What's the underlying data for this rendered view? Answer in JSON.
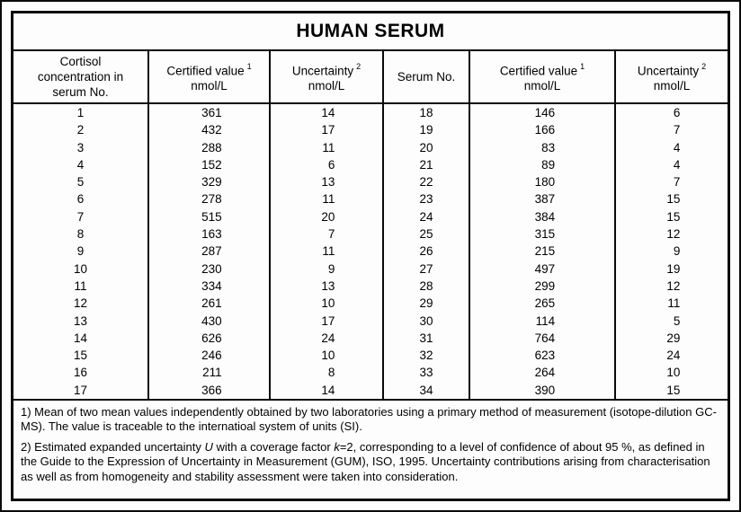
{
  "title": "HUMAN SERUM",
  "headers": {
    "col1": "Cortisol concentration in serum No.",
    "certified": {
      "label": "Certified value",
      "sup": "1",
      "unit": "nmol/L"
    },
    "uncertainty": {
      "label": "Uncertainty",
      "sup": "2",
      "unit": "nmol/L"
    },
    "serum_no": "Serum No."
  },
  "table": {
    "rows": [
      [
        "1",
        "361",
        "14",
        "18",
        "146",
        "6"
      ],
      [
        "2",
        "432",
        "17",
        "19",
        "166",
        "7"
      ],
      [
        "3",
        "288",
        "11",
        "20",
        "83",
        "4"
      ],
      [
        "4",
        "152",
        "6",
        "21",
        "89",
        "4"
      ],
      [
        "5",
        "329",
        "13",
        "22",
        "180",
        "7"
      ],
      [
        "6",
        "278",
        "11",
        "23",
        "387",
        "15"
      ],
      [
        "7",
        "515",
        "20",
        "24",
        "384",
        "15"
      ],
      [
        "8",
        "163",
        "7",
        "25",
        "315",
        "12"
      ],
      [
        "9",
        "287",
        "11",
        "26",
        "215",
        "9"
      ],
      [
        "10",
        "230",
        "9",
        "27",
        "497",
        "19"
      ],
      [
        "11",
        "334",
        "13",
        "28",
        "299",
        "12"
      ],
      [
        "12",
        "261",
        "10",
        "29",
        "265",
        "11"
      ],
      [
        "13",
        "430",
        "17",
        "30",
        "114",
        "5"
      ],
      [
        "14",
        "626",
        "24",
        "31",
        "764",
        "29"
      ],
      [
        "15",
        "246",
        "10",
        "32",
        "623",
        "24"
      ],
      [
        "16",
        "211",
        "8",
        "33",
        "264",
        "10"
      ],
      [
        "17",
        "366",
        "14",
        "34",
        "390",
        "15"
      ]
    ]
  },
  "footnotes": {
    "note1": "1) Mean of two mean values independently obtained by two laboratories using a primary method of measurement (isotope-dilution GC-MS). The value is traceable to the internatioal system of units (SI).",
    "note2": {
      "s0": "2) Estimated expanded uncertainty ",
      "s1": "U",
      "s2": " with a coverage factor ",
      "s3": "k",
      "s4": "=2, corresponding to a level of confidence of about 95 %, as defined in the Guide to the Expression of Uncertainty in Measurement (GUM), ISO, 1995. Uncertainty contributions arising from characterisation as well as from homogeneity and stability assessment were taken into consideration."
    }
  }
}
